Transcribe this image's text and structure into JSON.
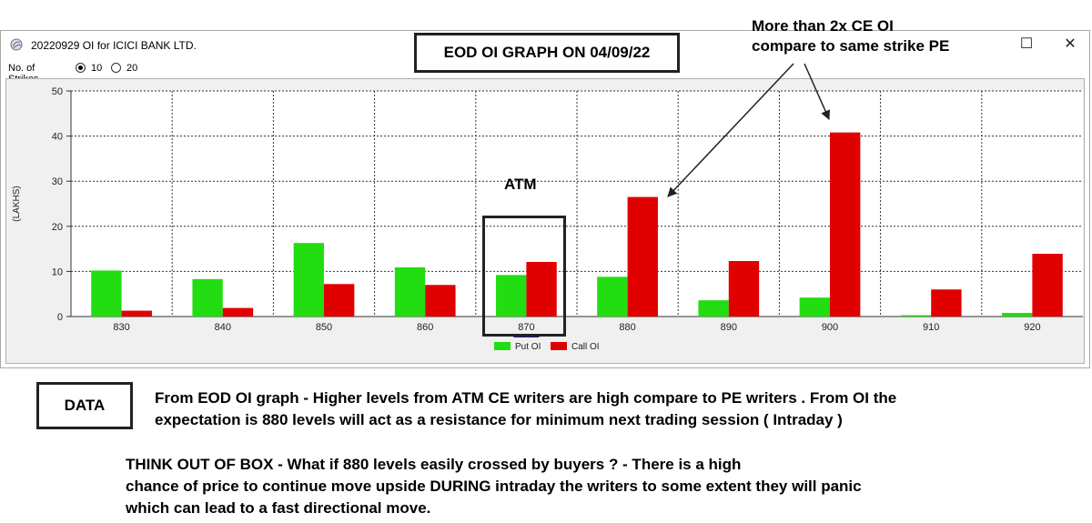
{
  "window": {
    "title": "20220929 OI for ICICI BANK LTD.",
    "max_glyph": "☐",
    "close_glyph": "✕",
    "strikes_label": "No. of Strikes",
    "strike_options": [
      "10",
      "20"
    ],
    "selected_strikes": "10",
    "icon": "app-globe-icon"
  },
  "chart_data": {
    "type": "bar",
    "categories": [
      "830",
      "840",
      "850",
      "860",
      "870",
      "880",
      "890",
      "900",
      "910",
      "920"
    ],
    "series": [
      {
        "name": "Put OI",
        "color": "#22dd11",
        "values": [
          10.2,
          8.3,
          16.3,
          10.9,
          9.2,
          8.8,
          3.6,
          4.2,
          0.3,
          0.8
        ]
      },
      {
        "name": "Call OI",
        "color": "#e00000",
        "values": [
          1.3,
          1.9,
          7.2,
          7.0,
          12.1,
          26.5,
          12.3,
          40.8,
          6.0,
          13.9
        ]
      }
    ],
    "ylabel": "(LAKHS)",
    "ylim": [
      0,
      50
    ],
    "yticks": [
      "0",
      "10",
      "20",
      "30",
      "40",
      "50"
    ],
    "grid": true,
    "legend_position": "bottom-center",
    "atm_marker_color": "#1a1aa6"
  },
  "annotations": {
    "title": "EOD OI GRAPH ON 04/09/22",
    "top_note": "More than 2x CE OI\ncompare to same strike PE",
    "atm": "ATM",
    "data_label": "DATA",
    "paragraph1": [
      "From EOD OI graph - Higher levels from ATM CE writers are high compare to PE writers . From OI the",
      "expectation is 880 levels will act as a resistance for minimum next trading session ( Intraday )"
    ],
    "paragraph2": [
      "THINK OUT OF BOX  - What if 880 levels easily crossed by buyers ? - There is a high",
      "chance of price to continue move upside DURING intraday the writers to some extent they will panic",
      "which can lead to a fast directional move."
    ]
  }
}
